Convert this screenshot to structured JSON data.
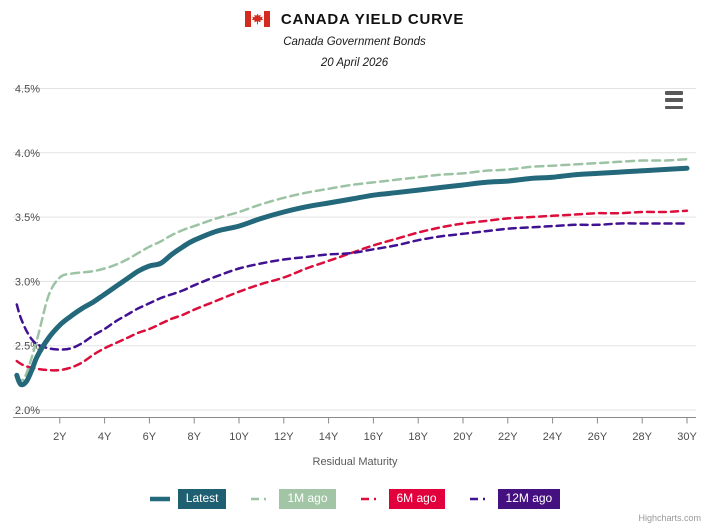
{
  "header": {
    "title": "CANADA YIELD CURVE",
    "subtitle": "Canada Government Bonds",
    "date": "20 April 2026",
    "flag": {
      "name": "canada-flag-icon",
      "red": "#d52b1e",
      "white": "#ffffff"
    }
  },
  "menu": {
    "icon": "hamburger-menu-icon"
  },
  "credit": "Highcharts.com",
  "chart_data": {
    "type": "line",
    "title": "CANADA YIELD CURVE",
    "subtitle": "Canada Government Bonds",
    "annotation_date": "20 April 2026",
    "xlabel": "Residual Maturity",
    "ylabel": "",
    "grid": true,
    "legend_position": "bottom",
    "xlim": [
      0,
      30.4
    ],
    "ylim": [
      2.0,
      4.5
    ],
    "x_tick_values": [
      2,
      4,
      6,
      8,
      10,
      12,
      14,
      16,
      18,
      20,
      22,
      24,
      26,
      28,
      30
    ],
    "x_tick_labels": [
      "2Y",
      "4Y",
      "6Y",
      "8Y",
      "10Y",
      "12Y",
      "14Y",
      "16Y",
      "18Y",
      "20Y",
      "22Y",
      "24Y",
      "26Y",
      "28Y",
      "30Y"
    ],
    "y_tick_values": [
      2.0,
      2.5,
      3.0,
      3.5,
      4.0,
      4.5
    ],
    "y_tick_labels": [
      "2.0%",
      "2.5%",
      "3.0%",
      "3.5%",
      "4.0%",
      "4.5%"
    ],
    "series": [
      {
        "name": "1M ago",
        "color": "#9cc3a4",
        "box_color": "#a2c5a6",
        "dash": "8,5",
        "width": 2.5,
        "points": [
          [
            0.08,
            2.26
          ],
          [
            0.25,
            2.23
          ],
          [
            0.5,
            2.28
          ],
          [
            1,
            2.56
          ],
          [
            1.5,
            2.89
          ],
          [
            2,
            3.03
          ],
          [
            2.5,
            3.06
          ],
          [
            3,
            3.07
          ],
          [
            3.5,
            3.08
          ],
          [
            4,
            3.1
          ],
          [
            4.5,
            3.13
          ],
          [
            5,
            3.17
          ],
          [
            5.5,
            3.22
          ],
          [
            6,
            3.27
          ],
          [
            6.5,
            3.31
          ],
          [
            7,
            3.36
          ],
          [
            7.5,
            3.4
          ],
          [
            8,
            3.43
          ],
          [
            9,
            3.49
          ],
          [
            10,
            3.54
          ],
          [
            11,
            3.6
          ],
          [
            12,
            3.65
          ],
          [
            13,
            3.69
          ],
          [
            14,
            3.72
          ],
          [
            15,
            3.75
          ],
          [
            16,
            3.77
          ],
          [
            17,
            3.79
          ],
          [
            18,
            3.81
          ],
          [
            19,
            3.83
          ],
          [
            20,
            3.84
          ],
          [
            21,
            3.86
          ],
          [
            22,
            3.87
          ],
          [
            23,
            3.89
          ],
          [
            24,
            3.9
          ],
          [
            25,
            3.91
          ],
          [
            26,
            3.92
          ],
          [
            27,
            3.93
          ],
          [
            28,
            3.94
          ],
          [
            29,
            3.94
          ],
          [
            30,
            3.95
          ]
        ]
      },
      {
        "name": "6M ago",
        "color": "#dc0f3c",
        "box_color": "#e2003c",
        "dash": "7,5",
        "width": 2.5,
        "points": [
          [
            0.08,
            2.38
          ],
          [
            0.25,
            2.36
          ],
          [
            0.5,
            2.34
          ],
          [
            1,
            2.32
          ],
          [
            1.5,
            2.31
          ],
          [
            2,
            2.31
          ],
          [
            2.5,
            2.33
          ],
          [
            3,
            2.37
          ],
          [
            3.5,
            2.43
          ],
          [
            4,
            2.48
          ],
          [
            4.5,
            2.52
          ],
          [
            5,
            2.56
          ],
          [
            5.5,
            2.6
          ],
          [
            6,
            2.63
          ],
          [
            6.5,
            2.67
          ],
          [
            7,
            2.71
          ],
          [
            7.5,
            2.74
          ],
          [
            8,
            2.78
          ],
          [
            9,
            2.85
          ],
          [
            10,
            2.92
          ],
          [
            11,
            2.98
          ],
          [
            12,
            3.03
          ],
          [
            13,
            3.1
          ],
          [
            14,
            3.16
          ],
          [
            15,
            3.22
          ],
          [
            16,
            3.28
          ],
          [
            17,
            3.33
          ],
          [
            18,
            3.38
          ],
          [
            19,
            3.42
          ],
          [
            20,
            3.45
          ],
          [
            21,
            3.47
          ],
          [
            22,
            3.49
          ],
          [
            23,
            3.5
          ],
          [
            24,
            3.51
          ],
          [
            25,
            3.52
          ],
          [
            26,
            3.53
          ],
          [
            27,
            3.53
          ],
          [
            28,
            3.54
          ],
          [
            29,
            3.54
          ],
          [
            30,
            3.55
          ]
        ]
      },
      {
        "name": "12M ago",
        "color": "#401192",
        "box_color": "#45107f",
        "dash": "7,5",
        "width": 2.5,
        "points": [
          [
            0.08,
            2.82
          ],
          [
            0.25,
            2.72
          ],
          [
            0.5,
            2.62
          ],
          [
            0.75,
            2.55
          ],
          [
            1,
            2.51
          ],
          [
            1.5,
            2.48
          ],
          [
            2,
            2.47
          ],
          [
            2.5,
            2.48
          ],
          [
            3,
            2.52
          ],
          [
            3.5,
            2.58
          ],
          [
            4,
            2.63
          ],
          [
            4.5,
            2.69
          ],
          [
            5,
            2.74
          ],
          [
            5.5,
            2.79
          ],
          [
            6,
            2.83
          ],
          [
            6.5,
            2.87
          ],
          [
            7,
            2.9
          ],
          [
            7.5,
            2.93
          ],
          [
            8,
            2.97
          ],
          [
            9,
            3.04
          ],
          [
            10,
            3.1
          ],
          [
            11,
            3.14
          ],
          [
            12,
            3.17
          ],
          [
            13,
            3.19
          ],
          [
            14,
            3.21
          ],
          [
            15,
            3.22
          ],
          [
            16,
            3.25
          ],
          [
            17,
            3.28
          ],
          [
            18,
            3.32
          ],
          [
            19,
            3.35
          ],
          [
            20,
            3.37
          ],
          [
            21,
            3.39
          ],
          [
            22,
            3.41
          ],
          [
            23,
            3.42
          ],
          [
            24,
            3.43
          ],
          [
            25,
            3.44
          ],
          [
            26,
            3.44
          ],
          [
            27,
            3.45
          ],
          [
            28,
            3.45
          ],
          [
            29,
            3.45
          ],
          [
            30,
            3.45
          ]
        ]
      },
      {
        "name": "Latest",
        "color": "#24697b",
        "box_color": "#1e5f72",
        "dash": "solid",
        "width": 5,
        "points": [
          [
            0.08,
            2.27
          ],
          [
            0.25,
            2.2
          ],
          [
            0.5,
            2.22
          ],
          [
            0.75,
            2.31
          ],
          [
            1,
            2.42
          ],
          [
            1.5,
            2.56
          ],
          [
            2,
            2.66
          ],
          [
            2.5,
            2.73
          ],
          [
            3,
            2.79
          ],
          [
            3.5,
            2.84
          ],
          [
            4,
            2.9
          ],
          [
            4.5,
            2.96
          ],
          [
            5,
            3.02
          ],
          [
            5.5,
            3.08
          ],
          [
            6,
            3.12
          ],
          [
            6.5,
            3.14
          ],
          [
            7,
            3.21
          ],
          [
            7.5,
            3.27
          ],
          [
            8,
            3.32
          ],
          [
            9,
            3.39
          ],
          [
            10,
            3.43
          ],
          [
            11,
            3.49
          ],
          [
            12,
            3.54
          ],
          [
            13,
            3.58
          ],
          [
            14,
            3.61
          ],
          [
            15,
            3.64
          ],
          [
            16,
            3.67
          ],
          [
            17,
            3.69
          ],
          [
            18,
            3.71
          ],
          [
            19,
            3.73
          ],
          [
            20,
            3.75
          ],
          [
            21,
            3.77
          ],
          [
            22,
            3.78
          ],
          [
            23,
            3.8
          ],
          [
            24,
            3.81
          ],
          [
            25,
            3.83
          ],
          [
            26,
            3.84
          ],
          [
            27,
            3.85
          ],
          [
            28,
            3.86
          ],
          [
            29,
            3.87
          ],
          [
            30,
            3.88
          ]
        ]
      }
    ],
    "legend_order": [
      "Latest",
      "1M ago",
      "6M ago",
      "12M ago"
    ],
    "styles": {
      "grid_color": "#e3e3e3",
      "axis_line_color": "#8a8a8a",
      "tick_color": "#8a8a8a",
      "tick_label_color": "#4d4d4d",
      "axis_title_color": "#5a5a5a"
    }
  }
}
